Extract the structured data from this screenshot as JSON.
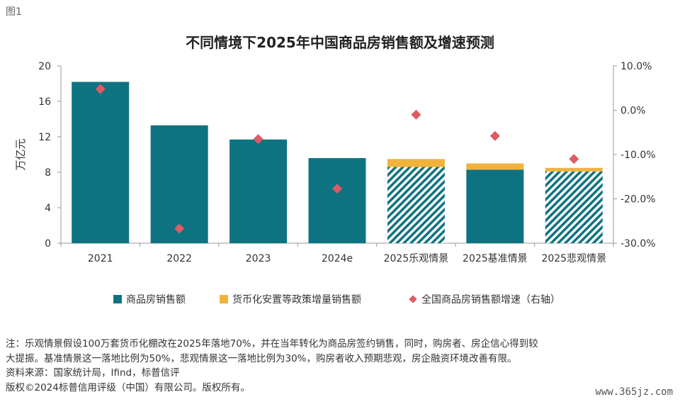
{
  "figure_label": "图1",
  "colors": {
    "teal": "#0E7381",
    "gold": "#F2B33D",
    "red": "#E05A63",
    "axis": "#999999",
    "grid": "#dddddd"
  },
  "chart_data": {
    "type": "bar",
    "title": "不同情境下2025年中国商品房销售额及增速预测",
    "ylabel": "万亿元",
    "y2label": "",
    "categories": [
      "2021",
      "2022",
      "2023",
      "2024e",
      "2025乐观情景",
      "2025基准情景",
      "2025悲观情景"
    ],
    "ylim": [
      0,
      20
    ],
    "yticks": [
      "0",
      "4",
      "8",
      "12",
      "16",
      "20"
    ],
    "y2lim": [
      -30,
      10
    ],
    "y2ticks": [
      "-30.0%",
      "-20.0%",
      "-10.0%",
      "0.0%",
      "10.0%"
    ],
    "series": [
      {
        "name": "商品房销售额",
        "type": "bar",
        "color": "#0E7381",
        "values": [
          18.2,
          13.3,
          11.7,
          9.6,
          8.6,
          8.3,
          8.1
        ],
        "hatched": [
          false,
          false,
          false,
          false,
          true,
          false,
          true
        ]
      },
      {
        "name": "货币化安置等政策增量销售额",
        "type": "bar-stack",
        "color": "#F2B33D",
        "values": [
          0,
          0,
          0,
          0,
          0.9,
          0.7,
          0.4
        ]
      },
      {
        "name": "全国商品房销售额增速（右轴）",
        "type": "scatter",
        "color": "#E05A63",
        "axis": "right",
        "values": [
          4.8,
          -26.7,
          -6.5,
          -17.7,
          -1.0,
          -5.8,
          -11.0
        ]
      }
    ],
    "legend_position": "bottom",
    "grid": false
  },
  "legend": [
    {
      "label": "商品房销售额",
      "color": "#0E7381",
      "shape": "square"
    },
    {
      "label": "货币化安置等政策增量销售额",
      "color": "#F2B33D",
      "shape": "square"
    },
    {
      "label": "全国商品房销售额增速（右轴）",
      "color": "#E05A63",
      "shape": "diamond"
    }
  ],
  "notes": [
    "注：乐观情景假设100万套货币化棚改在2025年落地70%，并在当年转化为商品房签约销售，同时，购房者、房企信心得到较",
    "大提振。基准情景这一落地比例为50%，悲观情景这一落地比例为30%，购房者收入预期悲观，房企融资环境改善有限。",
    "资料来源：国家统计局，Ifind，标普信评",
    "版权©2024标普信用评级（中国）有限公司。版权所有。"
  ],
  "watermark": "www.365jz.com"
}
